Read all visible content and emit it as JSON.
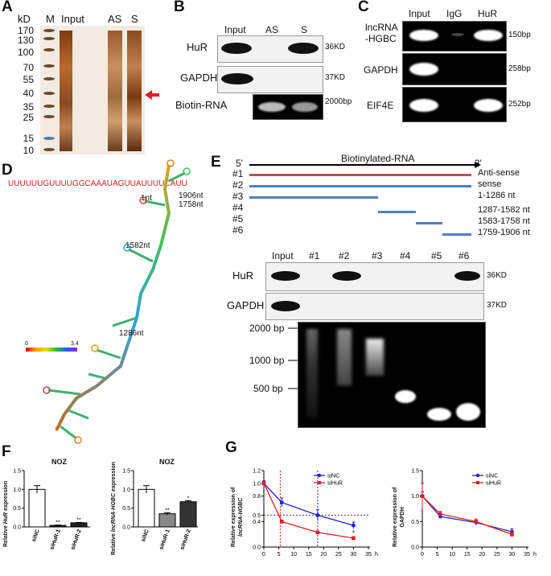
{
  "panels": {
    "A": {
      "label": "A",
      "unit": "kD",
      "markers": [
        "170",
        "130",
        "100",
        "70",
        "55",
        "40",
        "35",
        "25",
        "15",
        "10"
      ],
      "lanes": [
        "M",
        "Input",
        "AS",
        "S"
      ]
    },
    "B": {
      "label": "B",
      "lanes": [
        "Input",
        "AS",
        "S"
      ],
      "rows": [
        {
          "name": "HuR",
          "size": "36KD"
        },
        {
          "name": "GAPDH",
          "size": "37KD"
        },
        {
          "name": "Biotin-RNA",
          "size": "2000bp"
        }
      ]
    },
    "C": {
      "label": "C",
      "lanes": [
        "Input",
        "IgG",
        "HuR"
      ],
      "rows": [
        {
          "name_line1": "lncRNA",
          "name_line2": "-HGBC",
          "size": "150bp"
        },
        {
          "name": "GAPDH",
          "size": "258bp"
        },
        {
          "name": "EIF4E",
          "size": "252bp"
        }
      ]
    },
    "D": {
      "label": "D",
      "sequence": "UUUUUUGUUUUGGCAAAUAGUUAUUUUCAUU",
      "annotations": [
        "1nt",
        "1906nt",
        "1758nt",
        "1582nt",
        "1286nt"
      ],
      "scale_min": "0",
      "scale_max": "3.4"
    },
    "E": {
      "label": "E",
      "five_prime": "5'",
      "three_prime": "3'",
      "construct_title": "Biotinylated-RNA",
      "constructs": [
        {
          "id": "#1",
          "desc": "Anti-sense",
          "color": "#c0504d"
        },
        {
          "id": "#2",
          "desc": "sense",
          "color": "#4f81bd"
        },
        {
          "id": "#3",
          "desc": "1-1286 nt",
          "color": "#4f81bd"
        },
        {
          "id": "#4",
          "desc": "1287-1582 nt",
          "color": "#4f81bd"
        },
        {
          "id": "#5",
          "desc": "1583-1758 nt",
          "color": "#4f81bd"
        },
        {
          "id": "#6",
          "desc": "1759-1906 nt",
          "color": "#4f81bd"
        }
      ],
      "lanes": [
        "Input",
        "#1",
        "#2",
        "#3",
        "#4",
        "#5",
        "#6"
      ],
      "rows": [
        {
          "name": "HuR",
          "size": "36KD"
        },
        {
          "name": "GAPDH",
          "size": "37KD"
        }
      ],
      "gel_ladder": [
        "2000 bp",
        "1000 bp",
        "500 bp"
      ]
    },
    "F": {
      "label": "F",
      "charts": [
        {
          "title": "NOZ",
          "ylabel_pre": "Relative ",
          "ylabel_italic": "HuR",
          "ylabel_post": " expression",
          "categories": [
            "siNC",
            "siHuR-1",
            "siHuR-2"
          ],
          "values": [
            1.0,
            0.04,
            0.11
          ],
          "errors": [
            0.1,
            0.01,
            0.01
          ],
          "significance": [
            "",
            "**",
            "**"
          ],
          "bar_colors": [
            "#ffffff",
            "#222222",
            "#222222"
          ],
          "yticks": [
            "0.0",
            "0.5",
            "1.0",
            "1.5"
          ],
          "ylim": [
            0,
            1.5
          ]
        },
        {
          "title": "NOZ",
          "ylabel_pre": "Relative ",
          "ylabel_italic": "lncRNA-HGBC",
          "ylabel_post": " expression",
          "categories": [
            "siNC",
            "siHuR-1",
            "siHuR-2"
          ],
          "values": [
            1.0,
            0.35,
            0.67
          ],
          "errors": [
            0.1,
            0.03,
            0.03
          ],
          "significance": [
            "",
            "**",
            "*"
          ],
          "bar_colors": [
            "#ffffff",
            "#888888",
            "#333333"
          ],
          "yticks": [
            "0.0",
            "0.5",
            "1.0",
            "1.5"
          ],
          "ylim": [
            0,
            1.5
          ]
        }
      ]
    },
    "G": {
      "label": "G",
      "charts": [
        {
          "ylabel_line1": "Relative expression of",
          "ylabel_line2": "lncRNA-HGBC",
          "xunit": "h",
          "xticks": [
            "0",
            "5",
            "10",
            "15",
            "20",
            "25",
            "30",
            "35"
          ],
          "yticks": [
            "0.0",
            "0.4",
            "0.5",
            "0.8",
            "1.0",
            "1.2"
          ],
          "series": [
            {
              "name": "siNC",
              "color": "#1f1fe0",
              "x": [
                0,
                6,
                18,
                30
              ],
              "y": [
                1.0,
                0.7,
                0.5,
                0.34
              ],
              "err": [
                0.04,
                0.07,
                0.09,
                0.05
              ]
            },
            {
              "name": "siHuR",
              "color": "#e01f1f",
              "x": [
                0,
                6,
                18,
                30
              ],
              "y": [
                1.0,
                0.4,
                0.23,
                0.14
              ],
              "err": [
                0.03,
                0.02,
                0.02,
                0.02
              ]
            }
          ],
          "annotation": "*"
        },
        {
          "ylabel_line1": "Relative expression of",
          "ylabel_line2": "GAPDH",
          "xunit": "h",
          "xticks": [
            "0",
            "5",
            "10",
            "15",
            "20",
            "25",
            "30",
            "35"
          ],
          "yticks": [
            "0.0",
            "0.5",
            "1.0",
            "1.5"
          ],
          "series": [
            {
              "name": "siNC",
              "color": "#1f1fe0",
              "x": [
                0,
                6,
                18,
                30
              ],
              "y": [
                1.0,
                0.6,
                0.48,
                0.3
              ],
              "err": [
                0.08,
                0.04,
                0.04,
                0.06
              ]
            },
            {
              "name": "siHuR",
              "color": "#e01f1f",
              "x": [
                0,
                6,
                18,
                30
              ],
              "y": [
                1.0,
                0.65,
                0.5,
                0.25
              ],
              "err": [
                0.25,
                0.05,
                0.05,
                0.05
              ]
            }
          ]
        }
      ]
    }
  }
}
